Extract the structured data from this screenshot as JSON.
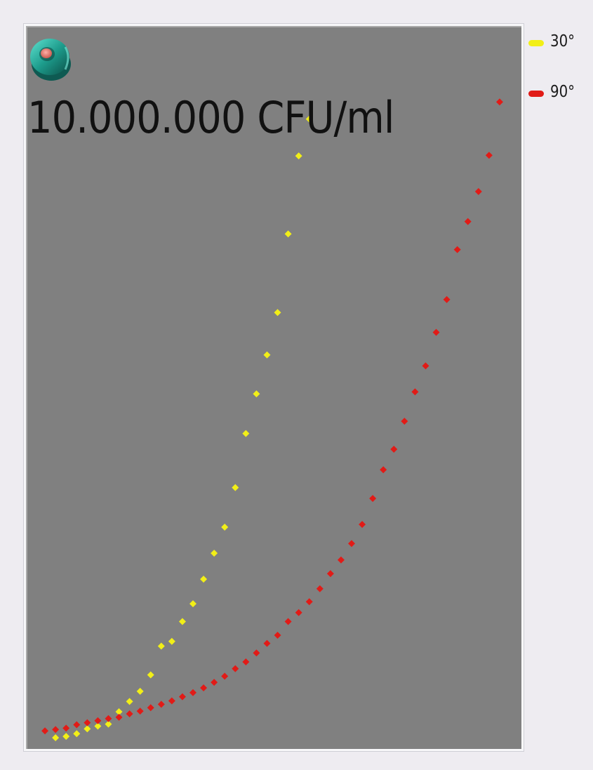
{
  "chart_data": {
    "type": "scatter",
    "title": "10.000.000 CFU/ml",
    "xlabel": "",
    "ylabel": "",
    "xlim": [
      0,
      45
    ],
    "ylim": [
      0,
      100
    ],
    "grid": false,
    "background": "#808080",
    "legend_position": "top-right",
    "series": [
      {
        "name": "30°",
        "color": "#f2ef17",
        "marker": "diamond",
        "x": [
          2,
          3,
          4,
          5,
          6,
          7,
          8,
          9,
          10,
          11,
          12,
          13,
          14,
          15,
          16,
          17,
          18,
          19,
          20,
          21,
          22,
          23,
          24,
          25,
          26
        ],
        "y": [
          0.2,
          0.4,
          0.8,
          1.5,
          1.9,
          2.2,
          4.0,
          5.5,
          7.0,
          9.4,
          13.6,
          14.3,
          17.2,
          19.8,
          23.4,
          27.2,
          31.0,
          36.8,
          44.7,
          50.5,
          56.2,
          62.4,
          73.9,
          85.3,
          90.7
        ]
      },
      {
        "name": "90°",
        "color": "#e11b17",
        "marker": "diamond",
        "x": [
          1,
          2,
          3,
          4,
          5,
          6,
          7,
          8,
          9,
          10,
          11,
          12,
          13,
          14,
          15,
          16,
          17,
          18,
          19,
          20,
          21,
          22,
          23,
          24,
          25,
          26,
          27,
          28,
          29,
          30,
          31,
          32,
          33,
          34,
          35,
          36,
          37,
          38,
          39,
          40,
          41,
          42,
          43,
          44
        ],
        "y": [
          1.2,
          1.4,
          1.6,
          2.1,
          2.4,
          2.7,
          3.0,
          3.2,
          3.7,
          4.1,
          4.6,
          5.1,
          5.6,
          6.2,
          6.8,
          7.5,
          8.3,
          9.2,
          10.3,
          11.3,
          12.6,
          14.0,
          15.2,
          17.2,
          18.5,
          20.1,
          22.0,
          24.2,
          26.2,
          28.6,
          31.4,
          35.2,
          39.4,
          42.4,
          46.5,
          50.8,
          54.6,
          59.5,
          64.3,
          71.6,
          75.7,
          80.1,
          85.4,
          93.2
        ]
      }
    ]
  }
}
